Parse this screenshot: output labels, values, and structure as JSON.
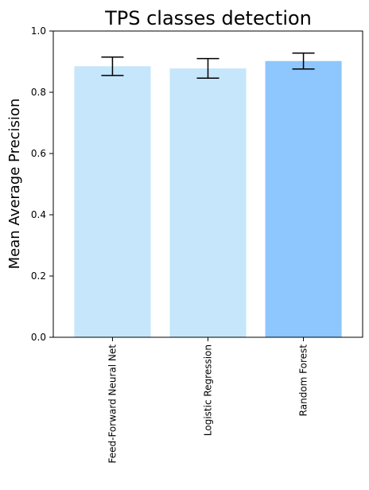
{
  "chart_data": {
    "type": "bar",
    "title": "TPS classes detection",
    "xlabel": "",
    "ylabel": "Mean Average Precision",
    "categories": [
      "Feed-Forward Neural Net",
      "Logistic Regression",
      "Random Forest"
    ],
    "values": [
      0.885,
      0.878,
      0.902
    ],
    "error": [
      0.03,
      0.032,
      0.026
    ],
    "colors": [
      "#c5e6fb",
      "#c5e6fb",
      "#8ec6fe"
    ],
    "ylim": [
      0,
      1.0
    ],
    "yticks": [
      "0.0",
      "0.2",
      "0.4",
      "0.6",
      "0.8",
      "1.0"
    ],
    "grid": false
  }
}
